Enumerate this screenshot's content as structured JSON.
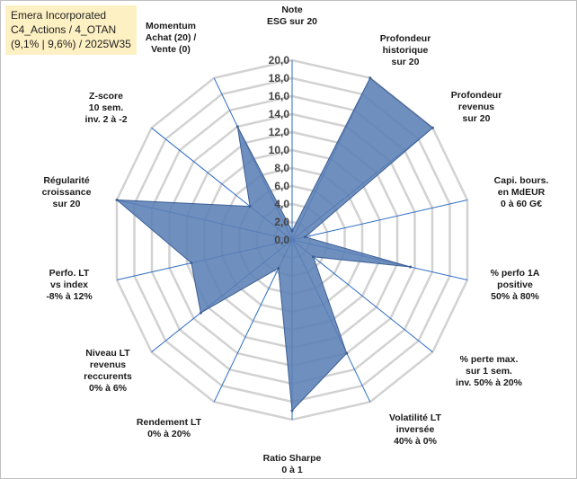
{
  "header": {
    "line1": "Emera Incorporated",
    "line2": "C4_Actions / 4_OTAN",
    "line3": "(9,1% | 9,6%) / 2025W35"
  },
  "chart_data": {
    "type": "radar",
    "title": "",
    "rlim": [
      0,
      20
    ],
    "tick_values": [
      0,
      2,
      4,
      6,
      8,
      10,
      12,
      14,
      16,
      18,
      20
    ],
    "tick_labels": [
      "0,0",
      "2,0",
      "4,0",
      "6,0",
      "8,0",
      "10,0",
      "12,0",
      "14,0",
      "16,0",
      "18,0",
      "20,0"
    ],
    "grid": true,
    "colors": {
      "fill": "#5b7fb5",
      "stroke": "#3d5f94",
      "grid": "#d2d2d2",
      "spoke": "#2e6dc4"
    },
    "axes": [
      {
        "label": [
          "Note",
          "ESG sur 20"
        ],
        "value": 1.0
      },
      {
        "label": [
          "Profondeur",
          "historique",
          "sur 20"
        ],
        "value": 20.0
      },
      {
        "label": [
          "Profondeur",
          "revenus",
          "sur 20"
        ],
        "value": 20.0
      },
      {
        "label": [
          "Capi. bours.",
          "en MdEUR",
          "0 à 60 G€"
        ],
        "value": 1.5
      },
      {
        "label": [
          "% perfo 1A",
          "positive",
          "50% à 80%"
        ],
        "value": 13.5
      },
      {
        "label": [
          "% perte max.",
          "sur 1 sem.",
          "inv. 50% à 20%"
        ],
        "value": 3.0
      },
      {
        "label": [
          "Volatilité LT",
          "inversée",
          "40% à 0%"
        ],
        "value": 14.0
      },
      {
        "label": [
          "Ratio Sharpe",
          "0 à 1"
        ],
        "value": 19.0
      },
      {
        "label": [
          "Rendement LT",
          "0% à 20%"
        ],
        "value": 3.5
      },
      {
        "label": [
          "Niveau LT",
          "revenus",
          "reccurents",
          "0% à 6%"
        ],
        "value": 13.0
      },
      {
        "label": [
          "Perfo. LT",
          "vs index",
          "-8% à 12%"
        ],
        "value": 11.5
      },
      {
        "label": [
          "Régularité",
          "croissance",
          "sur 20"
        ],
        "value": 20.0
      },
      {
        "label": [
          "Z-score",
          "10 sem.",
          "inv. 2 à -2"
        ],
        "value": 6.0
      },
      {
        "label": [
          "Momentum",
          "Achat (20) /",
          "Vente (0)"
        ],
        "value": 14.0
      }
    ]
  }
}
